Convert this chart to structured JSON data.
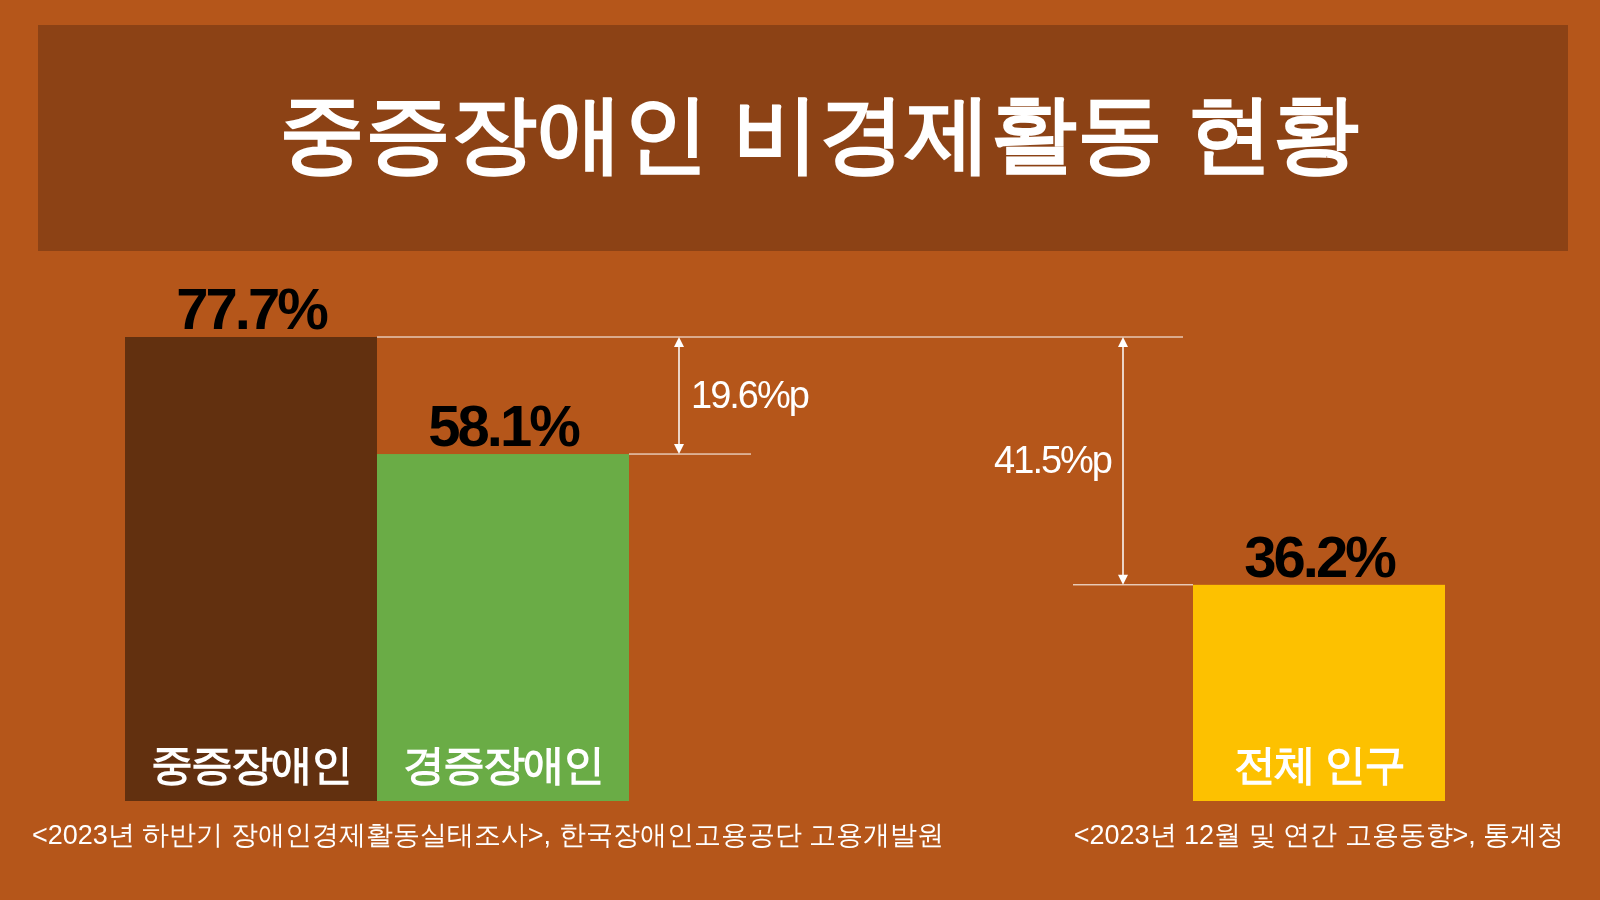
{
  "chart_data": {
    "type": "bar",
    "title": "중증장애인 비경제활동 현황",
    "categories": [
      "중증장애인",
      "경증장애인",
      null,
      null,
      "전체 인구"
    ],
    "values": [
      77.7,
      58.1,
      null,
      null,
      36.2
    ],
    "colors": [
      "#62300f",
      "#6aac46",
      null,
      null,
      "#fdc100"
    ],
    "value_labels": [
      "77.7%",
      "58.1%",
      null,
      null,
      "36.2%"
    ],
    "annotations": [
      "19.6%p",
      "41.5%p",
      "<2023년 하반기 장애인경제활동실태조사>, 한국장애인고용공단 고용개발원",
      "<2023년 12월 및 연간 고용동향>, 통계청"
    ]
  }
}
